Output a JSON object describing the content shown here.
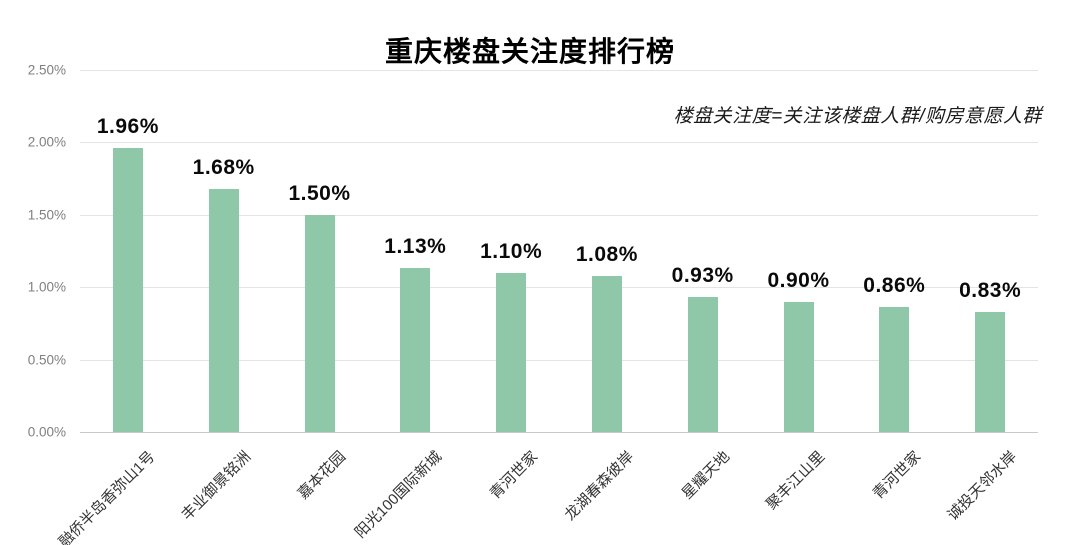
{
  "chart_data": {
    "type": "bar",
    "title": "重庆楼盘关注度排行榜",
    "annotation": "楼盘关注度=关注该楼盘人群/购房意愿人群",
    "categories": [
      "融侨半岛香弥山1号",
      "丰业御景铭洲",
      "嘉本花园",
      "阳光100国际新城",
      "青河世家",
      "龙湖春森彼岸",
      "星耀天地",
      "聚丰江山里",
      "青河世家",
      "诚投天邻水岸"
    ],
    "values": [
      1.96,
      1.68,
      1.5,
      1.13,
      1.1,
      1.08,
      0.93,
      0.9,
      0.86,
      0.83
    ],
    "value_labels": [
      "1.96%",
      "1.68%",
      "1.50%",
      "1.13%",
      "1.10%",
      "1.08%",
      "0.93%",
      "0.90%",
      "0.86%",
      "0.83%"
    ],
    "y_ticks": [
      "2.50%",
      "2.00%",
      "1.50%",
      "1.00%",
      "0.50%",
      "0.00%"
    ],
    "ylim": [
      0,
      2.5
    ],
    "xlabel": "",
    "ylabel": "",
    "legend": null,
    "grid": "horizontal",
    "bar_color": "#8fc7a9",
    "gridline_color": "#e4e4e4",
    "baseline_color": "#c9c9c9",
    "ytick_color": "#7f7f7f",
    "xtick_color": "#333333",
    "value_label_color": "#0a0a0a",
    "title_color": "#000000"
  }
}
